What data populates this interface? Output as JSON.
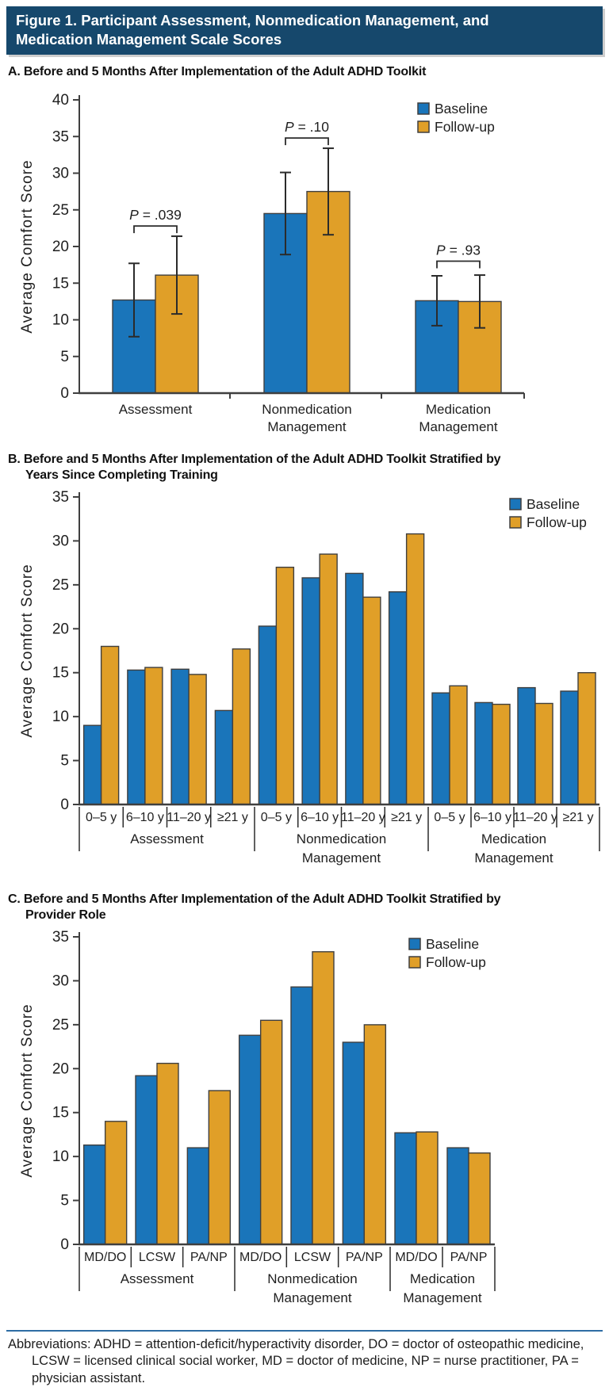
{
  "header": {
    "line1": "Figure 1. Participant Assessment, Nonmedication Management, and",
    "line2": "Medication Management Scale Scores"
  },
  "colors": {
    "baseline": "#1a75ba",
    "followup": "#e09f28",
    "header_bg": "#16486c",
    "rule": "#2e6da4",
    "outline": "#3f3f3f",
    "text": "#1f1f1f"
  },
  "chart_data": [
    {
      "panel": "A",
      "type": "bar",
      "title_lines": [
        "A. Before and 5 Months After Implementation of the Adult ADHD Toolkit"
      ],
      "ylabel": "Average Comfort Score",
      "ylim": [
        0,
        40
      ],
      "ytick_step": 5,
      "grid": false,
      "legend": [
        "Baseline",
        "Follow-up"
      ],
      "legend_position": "top-right",
      "groups": [
        {
          "label_lines": [
            "Assessment"
          ],
          "pairs": [
            {
              "baseline": 12.7,
              "followup": 16.1,
              "baseline_ci": [
                7.7,
                17.7
              ],
              "followup_ci": [
                10.8,
                21.4
              ]
            }
          ],
          "p_label": "P = .039",
          "bracket_y": 22.8
        },
        {
          "label_lines": [
            "Nonmedication",
            "Management"
          ],
          "pairs": [
            {
              "baseline": 24.5,
              "followup": 27.5,
              "baseline_ci": [
                18.9,
                30.1
              ],
              "followup_ci": [
                21.6,
                33.4
              ]
            }
          ],
          "p_label": "P = .10",
          "bracket_y": 34.8
        },
        {
          "label_lines": [
            "Medication",
            "Management"
          ],
          "pairs": [
            {
              "baseline": 12.6,
              "followup": 12.5,
              "baseline_ci": [
                9.2,
                16.0
              ],
              "followup_ci": [
                8.9,
                16.1
              ]
            }
          ],
          "p_label": "P = .93",
          "bracket_y": 18.0
        }
      ]
    },
    {
      "panel": "B",
      "type": "bar",
      "title_lines": [
        "B. Before and 5 Months After Implementation of the Adult ADHD Toolkit Stratified by",
        "Years Since Completing Training"
      ],
      "ylabel": "Average Comfort Score",
      "ylim": [
        0,
        35
      ],
      "ytick_step": 5,
      "grid": false,
      "legend": [
        "Baseline",
        "Follow-up"
      ],
      "legend_position": "top-right",
      "groups": [
        {
          "label_lines": [
            "Assessment"
          ],
          "pairs": [
            {
              "sub": "0–5 y",
              "baseline": 9.0,
              "followup": 18.0
            },
            {
              "sub": "6–10 y",
              "baseline": 15.3,
              "followup": 15.6
            },
            {
              "sub": "11–20 y",
              "baseline": 15.4,
              "followup": 14.8
            },
            {
              "sub": "≥21 y",
              "baseline": 10.7,
              "followup": 17.7
            }
          ]
        },
        {
          "label_lines": [
            "Nonmedication",
            "Management"
          ],
          "pairs": [
            {
              "sub": "0–5 y",
              "baseline": 20.3,
              "followup": 27.0
            },
            {
              "sub": "6–10 y",
              "baseline": 25.8,
              "followup": 28.5
            },
            {
              "sub": "11–20 y",
              "baseline": 26.3,
              "followup": 23.6
            },
            {
              "sub": "≥21 y",
              "baseline": 24.2,
              "followup": 30.8
            }
          ]
        },
        {
          "label_lines": [
            "Medication",
            "Management"
          ],
          "pairs": [
            {
              "sub": "0–5 y",
              "baseline": 12.7,
              "followup": 13.5
            },
            {
              "sub": "6–10 y",
              "baseline": 11.6,
              "followup": 11.4
            },
            {
              "sub": "11–20 y",
              "baseline": 13.3,
              "followup": 11.5
            },
            {
              "sub": "≥21 y",
              "baseline": 12.9,
              "followup": 15.0
            }
          ]
        }
      ]
    },
    {
      "panel": "C",
      "type": "bar",
      "title_lines": [
        "C. Before and 5 Months After Implementation of the Adult ADHD Toolkit Stratified by",
        "Provider Role"
      ],
      "ylabel": "Average Comfort Score",
      "ylim": [
        0,
        35
      ],
      "ytick_step": 5,
      "grid": false,
      "legend": [
        "Baseline",
        "Follow-up"
      ],
      "legend_position": "top-right",
      "groups": [
        {
          "label_lines": [
            "Assessment"
          ],
          "pairs": [
            {
              "sub": "MD/DO",
              "baseline": 11.3,
              "followup": 14.0
            },
            {
              "sub": "LCSW",
              "baseline": 19.2,
              "followup": 20.6
            },
            {
              "sub": "PA/NP",
              "baseline": 11.0,
              "followup": 17.5
            }
          ]
        },
        {
          "label_lines": [
            "Nonmedication",
            "Management"
          ],
          "pairs": [
            {
              "sub": "MD/DO",
              "baseline": 23.8,
              "followup": 25.5
            },
            {
              "sub": "LCSW",
              "baseline": 29.3,
              "followup": 33.3
            },
            {
              "sub": "PA/NP",
              "baseline": 23.0,
              "followup": 25.0
            }
          ]
        },
        {
          "label_lines": [
            "Medication",
            "Management"
          ],
          "pairs": [
            {
              "sub": "MD/DO",
              "baseline": 12.7,
              "followup": 12.8
            },
            {
              "sub": "PA/NP",
              "baseline": 11.0,
              "followup": 10.4
            }
          ]
        }
      ]
    }
  ],
  "footer": {
    "text": "Abbreviations: ADHD = attention-deficit/hyperactivity disorder, DO = doctor of osteopathic medicine, LCSW = licensed clinical social worker, MD = doctor of medicine, NP = nurse practitioner, PA = physician assistant."
  }
}
